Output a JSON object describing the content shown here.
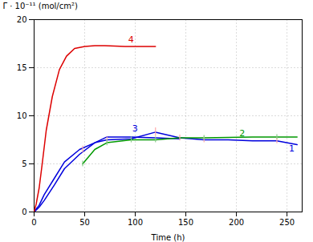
{
  "chart_data": {
    "type": "line",
    "xlabel": "Time (h)",
    "ylabel": "Γ · 10⁻¹¹ (mol/cm²)",
    "xlim": [
      0,
      265
    ],
    "ylim": [
      0,
      20
    ],
    "xticks": [
      0,
      50,
      100,
      150,
      200,
      250
    ],
    "yticks": [
      0,
      5,
      10,
      15,
      20
    ],
    "grid": true,
    "series": [
      {
        "color": "#0000dd",
        "x": [
          0,
          2,
          5,
          10,
          20,
          30,
          45,
          60,
          72,
          96,
          120,
          144,
          168,
          192,
          216,
          240,
          260
        ],
        "values": [
          0.0,
          0.3,
          0.7,
          1.8,
          3.5,
          5.2,
          6.5,
          7.2,
          7.5,
          7.6,
          8.3,
          7.7,
          7.5,
          7.5,
          7.4,
          7.4,
          7.0
        ]
      },
      {
        "color": "#0000dd",
        "x": [
          0,
          2,
          5,
          10,
          20,
          30,
          45,
          60,
          72,
          96,
          120,
          144
        ],
        "values": [
          0.0,
          0.2,
          0.5,
          1.2,
          2.8,
          4.5,
          6.0,
          7.2,
          7.8,
          7.8,
          7.7,
          7.6
        ]
      },
      {
        "color": "#009900",
        "x": [
          48,
          60,
          72,
          96,
          120,
          144,
          168,
          192,
          216,
          240,
          260
        ],
        "values": [
          5.0,
          6.5,
          7.2,
          7.5,
          7.5,
          7.7,
          7.7,
          7.75,
          7.8,
          7.8,
          7.8
        ]
      },
      {
        "color": "#dd0000",
        "x": [
          0,
          2,
          5,
          8,
          12,
          18,
          25,
          32,
          40,
          50,
          60,
          70,
          90,
          120
        ],
        "values": [
          0.0,
          0.8,
          2.5,
          5.0,
          8.5,
          12.0,
          14.8,
          16.2,
          17.0,
          17.2,
          17.3,
          17.3,
          17.2,
          17.2
        ]
      }
    ],
    "error_bars": [
      {
        "color": "#ffaaaa",
        "x": [
          48,
          72,
          120,
          144,
          168,
          240
        ],
        "y": [
          6.5,
          7.5,
          8.3,
          7.7,
          7.5,
          7.4
        ],
        "yerr": [
          0.35,
          0.3,
          0.45,
          0.3,
          0.3,
          0.3
        ]
      },
      {
        "color": "#88cc88",
        "x": [
          48,
          72,
          96,
          120,
          168,
          240
        ],
        "y": [
          5.0,
          7.2,
          7.5,
          7.5,
          7.7,
          7.8
        ],
        "yerr": [
          0.3,
          0.3,
          0.3,
          0.3,
          0.25,
          0.25
        ]
      }
    ],
    "annotations": [
      {
        "text": "1",
        "x": 252,
        "y": 6.6,
        "color": "#0000dd"
      },
      {
        "text": "2",
        "x": 203,
        "y": 8.2,
        "color": "#009900"
      },
      {
        "text": "3",
        "x": 97,
        "y": 8.7,
        "color": "#0000dd"
      },
      {
        "text": "4",
        "x": 93,
        "y": 17.9,
        "color": "#dd0000"
      }
    ]
  }
}
